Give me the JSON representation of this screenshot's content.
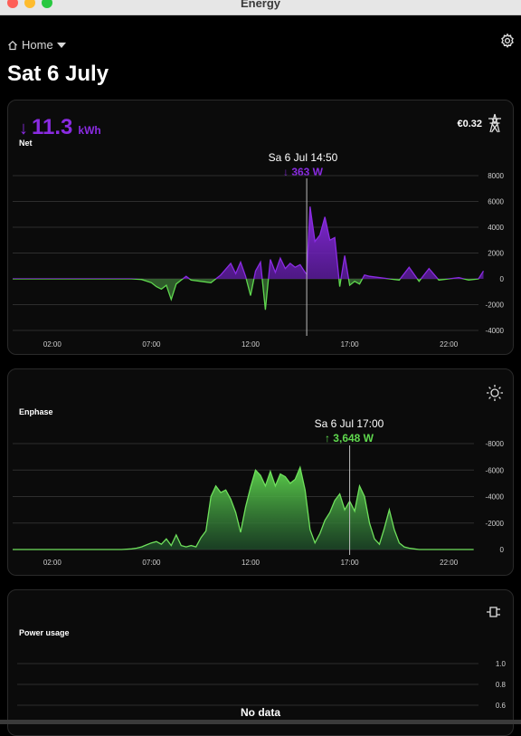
{
  "window": {
    "title": "Energy"
  },
  "header": {
    "breadcrumb": "Home",
    "title": "Sat 6 July"
  },
  "net_card": {
    "value": "11.3",
    "unit": "kWh",
    "arrow": "↓",
    "label": "Net",
    "cost": "€0.32",
    "icon": "transmission-tower-icon",
    "tooltip": {
      "date": "Sa 6 Jul 14:50",
      "value": "↓ 363 W"
    },
    "color": "#8a2be2"
  },
  "solar_card": {
    "label": "Enphase",
    "icon": "sun-icon",
    "tooltip": {
      "date": "Sa 6 Jul 17:00",
      "value": "↑ 3,648 W"
    },
    "color": "#5fd84e"
  },
  "usage_card": {
    "label": "Power usage",
    "icon": "plug-icon",
    "no_data": "No data"
  },
  "chart_data": [
    {
      "type": "area",
      "series": [
        {
          "x": [
            "00:00",
            "01:00",
            "02:00",
            "03:00",
            "04:00",
            "05:00",
            "06:00",
            "06:30",
            "07:00",
            "07:15",
            "07:30",
            "07:45",
            "08:00",
            "08:15",
            "08:30",
            "08:45",
            "09:00",
            "09:30",
            "10:00",
            "10:30",
            "11:00",
            "11:15",
            "11:30",
            "11:45",
            "12:00",
            "12:15",
            "12:30",
            "12:45",
            "13:00",
            "13:15",
            "13:30",
            "13:45",
            "14:00",
            "14:15",
            "14:30",
            "14:45",
            "14:50",
            "15:00",
            "15:15",
            "15:30",
            "15:45",
            "16:00",
            "16:15",
            "16:30",
            "16:45",
            "17:00",
            "17:15",
            "17:30",
            "17:45",
            "18:00",
            "19:00",
            "19:30",
            "20:00",
            "20:30",
            "21:00",
            "21:30",
            "22:00",
            "22:30",
            "23:00",
            "23:30",
            "23:45"
          ],
          "values": [
            0,
            0,
            0,
            0,
            0,
            0,
            0,
            -50,
            -300,
            -600,
            -800,
            -500,
            -1600,
            -400,
            -100,
            200,
            -100,
            -200,
            -300,
            300,
            1200,
            400,
            1300,
            200,
            -1300,
            600,
            1300,
            -2400,
            1500,
            500,
            1600,
            800,
            1200,
            900,
            1100,
            500,
            363,
            5600,
            2900,
            3400,
            4800,
            3000,
            3200,
            -600,
            1800,
            -500,
            -200,
            -400,
            300,
            200,
            0,
            -100,
            900,
            -200,
            800,
            -100,
            0,
            100,
            -100,
            0,
            600
          ]
        }
      ],
      "xticks": [
        "02:00",
        "07:00",
        "12:00",
        "17:00",
        "22:00"
      ],
      "yticks": [
        "8000",
        "6000",
        "4000",
        "2000",
        "0",
        "-2000",
        "-4000"
      ],
      "ylim": [
        -4000,
        8000
      ],
      "xlabel": "",
      "ylabel": ""
    },
    {
      "type": "area",
      "series": [
        {
          "x": [
            "00:00",
            "02:00",
            "04:00",
            "05:00",
            "05:30",
            "06:00",
            "06:15",
            "06:30",
            "06:45",
            "07:00",
            "07:15",
            "07:30",
            "07:45",
            "08:00",
            "08:15",
            "08:30",
            "08:45",
            "09:00",
            "09:15",
            "09:30",
            "09:45",
            "10:00",
            "10:15",
            "10:30",
            "10:45",
            "11:00",
            "11:15",
            "11:30",
            "11:45",
            "12:00",
            "12:15",
            "12:30",
            "12:45",
            "13:00",
            "13:15",
            "13:30",
            "13:45",
            "14:00",
            "14:15",
            "14:30",
            "14:45",
            "15:00",
            "15:15",
            "15:30",
            "15:45",
            "16:00",
            "16:15",
            "16:30",
            "16:45",
            "17:00",
            "17:15",
            "17:30",
            "17:45",
            "18:00",
            "18:15",
            "18:30",
            "18:45",
            "19:00",
            "19:15",
            "19:30",
            "19:45",
            "20:00",
            "20:15",
            "20:30",
            "20:45",
            "21:00",
            "21:30",
            "22:00",
            "22:30",
            "23:00",
            "23:15"
          ],
          "values": [
            0,
            0,
            0,
            0,
            0,
            50,
            100,
            200,
            350,
            500,
            600,
            400,
            800,
            300,
            1100,
            300,
            200,
            300,
            200,
            900,
            1400,
            4000,
            4800,
            4300,
            4500,
            3800,
            2800,
            1300,
            3200,
            4700,
            6000,
            5600,
            4800,
            5900,
            4800,
            5700,
            5500,
            5000,
            5300,
            6200,
            4500,
            1500,
            500,
            1200,
            2200,
            2800,
            3700,
            4200,
            3000,
            3648,
            2900,
            4800,
            4000,
            2000,
            800,
            400,
            1600,
            3000,
            1500,
            500,
            200,
            100,
            50,
            0,
            0,
            0,
            0,
            0,
            0,
            0,
            0
          ]
        }
      ],
      "xticks": [
        "02:00",
        "07:00",
        "12:00",
        "17:00",
        "22:00"
      ],
      "yticks": [
        "-8000",
        "-6000",
        "-4000",
        "-2000",
        "0"
      ],
      "ylim": [
        0,
        8000
      ],
      "xlabel": "",
      "ylabel": ""
    },
    {
      "type": "line",
      "series": [],
      "yticks": [
        "1.0",
        "0.8",
        "0.6"
      ],
      "xlabel": "",
      "ylabel": ""
    }
  ]
}
